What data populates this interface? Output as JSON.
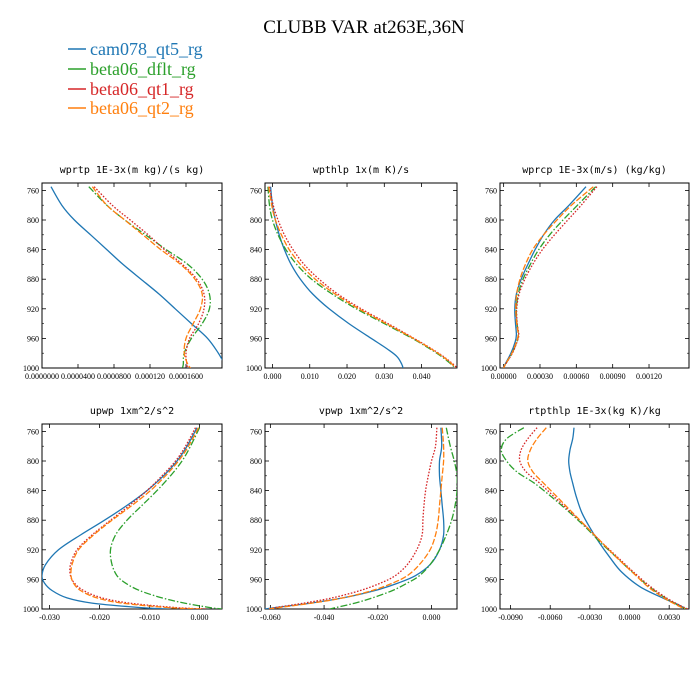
{
  "figure": {
    "title": "CLUBB VAR at263E,36N",
    "legend": [
      {
        "name": "cam078_qt5_rg",
        "color": "#1f77b4"
      },
      {
        "name": "beta06_dflt_rg",
        "color": "#2ca02c"
      },
      {
        "name": "beta06_qt1_rg",
        "color": "#d62728"
      },
      {
        "name": "beta06_qt2_rg",
        "color": "#ff7f0e"
      }
    ]
  },
  "chart_data": [
    {
      "type": "line",
      "title": "wprtp  1E-3x(m kg)/(s kg)",
      "xlim": [
        0.0,
        0.0002
      ],
      "ylim": [
        1000,
        750
      ],
      "xticks": [
        0.0,
        4e-05,
        8e-05,
        0.00012,
        0.00016
      ],
      "xtick_labels": [
        "0.0000000",
        "0.0000400",
        "0.0000800",
        "0.000120",
        "0.0001600"
      ],
      "yticks": [
        760,
        800,
        840,
        880,
        920,
        960,
        1000
      ],
      "ytick_labels": [
        "760",
        "800",
        "840",
        "880",
        "920",
        "960",
        "1000"
      ],
      "y": [
        755,
        780,
        800,
        820,
        840,
        860,
        880,
        900,
        920,
        940,
        960,
        980,
        995,
        1000
      ],
      "series": [
        {
          "name": "cam078_qt5_rg",
          "color": "#1f77b4",
          "dash": "solid",
          "values": [
            1e-05,
            2.2e-05,
            3.6e-05,
            5.4e-05,
            7.2e-05,
            9e-05,
            0.00011,
            0.00013,
            0.000148,
            0.000166,
            0.000184,
            0.000196,
            0.000203,
            0.000205
          ]
        },
        {
          "name": "beta06_dflt_rg",
          "color": "#2ca02c",
          "dash": "dashdot",
          "values": [
            5.2e-05,
            7.2e-05,
            9.2e-05,
            0.000115,
            0.000138,
            0.000162,
            0.000178,
            0.000186,
            0.000186,
            0.000178,
            0.000166,
            0.000158,
            0.000157,
            0.000156
          ]
        },
        {
          "name": "beta06_qt1_rg",
          "color": "#d62728",
          "dash": "dotted",
          "values": [
            5.8e-05,
            7.8e-05,
            9.8e-05,
            0.000118,
            0.000136,
            0.000156,
            0.000172,
            0.00018,
            0.00018,
            0.000174,
            0.000164,
            0.00016,
            0.000161,
            0.000162
          ]
        },
        {
          "name": "beta06_qt2_rg",
          "color": "#ff7f0e",
          "dash": "longdash",
          "values": [
            5.6e-05,
            7.2e-05,
            9.2e-05,
            0.000112,
            0.000132,
            0.000154,
            0.00017,
            0.000178,
            0.000176,
            0.000168,
            0.00016,
            0.000158,
            0.000162,
            0.000165
          ]
        }
      ]
    },
    {
      "type": "line",
      "title": "wpthlp  1x(m K)/s",
      "xlim": [
        -0.002,
        0.0495
      ],
      "ylim": [
        1000,
        750
      ],
      "xticks": [
        0.0,
        0.01,
        0.02,
        0.03,
        0.04
      ],
      "xtick_labels": [
        "0.000",
        "0.010",
        "0.020",
        "0.030",
        "0.040"
      ],
      "yticks": [
        760,
        800,
        840,
        880,
        920,
        960,
        1000
      ],
      "ytick_labels": [
        "760",
        "800",
        "840",
        "880",
        "920",
        "960",
        "1000"
      ],
      "y": [
        755,
        780,
        800,
        820,
        840,
        860,
        880,
        900,
        920,
        940,
        960,
        975,
        985,
        995,
        1000
      ],
      "series": [
        {
          "name": "cam078_qt5_rg",
          "color": "#1f77b4",
          "dash": "solid",
          "values": [
            -0.0005,
            0.0,
            0.0008,
            0.0018,
            0.0032,
            0.005,
            0.0075,
            0.0108,
            0.0152,
            0.0205,
            0.0265,
            0.031,
            0.0335,
            0.0347,
            0.035
          ]
        },
        {
          "name": "beta06_dflt_rg",
          "color": "#2ca02c",
          "dash": "dashdot",
          "values": [
            -0.0012,
            -0.0008,
            0.0,
            0.0015,
            0.0036,
            0.0065,
            0.0105,
            0.016,
            0.0225,
            0.03,
            0.0375,
            0.0425,
            0.0455,
            0.048,
            0.049
          ]
        },
        {
          "name": "beta06_qt1_rg",
          "color": "#d62728",
          "dash": "dotted",
          "values": [
            -0.0008,
            0.0002,
            0.0015,
            0.0032,
            0.0055,
            0.0085,
            0.0125,
            0.0175,
            0.0238,
            0.031,
            0.038,
            0.043,
            0.046,
            0.0485,
            0.0495
          ]
        },
        {
          "name": "beta06_qt2_rg",
          "color": "#ff7f0e",
          "dash": "longdash",
          "values": [
            -0.001,
            -0.0002,
            0.0008,
            0.0024,
            0.0045,
            0.0075,
            0.0115,
            0.0168,
            0.0232,
            0.0305,
            0.0378,
            0.0428,
            0.0458,
            0.0482,
            0.049
          ]
        }
      ]
    },
    {
      "type": "line",
      "title": "wprcp  1E-3x(m/s) (kg/kg)",
      "xlim": [
        -3e-05,
        0.00153
      ],
      "ylim": [
        1000,
        750
      ],
      "xticks": [
        0.0,
        0.0003,
        0.0006,
        0.0009,
        0.0012
      ],
      "xtick_labels": [
        "0.00000",
        "0.00030",
        "0.00060",
        "0.00090",
        "0.00120"
      ],
      "yticks": [
        760,
        800,
        840,
        880,
        920,
        960,
        1000
      ],
      "ytick_labels": [
        "760",
        "800",
        "840",
        "880",
        "920",
        "960",
        "1000"
      ],
      "y": [
        755,
        780,
        800,
        820,
        840,
        860,
        880,
        900,
        920,
        940,
        955,
        965,
        980,
        995,
        1000
      ],
      "series": [
        {
          "name": "cam078_qt5_rg",
          "color": "#1f77b4",
          "dash": "solid",
          "values": [
            0.00068,
            0.00054,
            0.00042,
            0.00033,
            0.00026,
            0.0002,
            0.000145,
            0.000105,
            9.2e-05,
            9.8e-05,
            0.000105,
            9.5e-05,
            6e-05,
            1.2e-05,
            0.0
          ]
        },
        {
          "name": "beta06_dflt_rg",
          "color": "#2ca02c",
          "dash": "dashdot",
          "values": [
            0.00076,
            0.00061,
            0.00049,
            0.00038,
            0.00029,
            0.00022,
            0.00016,
            0.00012,
            0.000105,
            0.00011,
            0.000122,
            0.000108,
            7e-05,
            1.5e-05,
            0.0
          ]
        },
        {
          "name": "beta06_qt1_rg",
          "color": "#d62728",
          "dash": "dotted",
          "values": [
            0.00077,
            0.00064,
            0.00053,
            0.00042,
            0.00032,
            0.00024,
            0.000175,
            0.000128,
            0.000108,
            0.000112,
            0.000125,
            0.00011,
            7.2e-05,
            1.5e-05,
            0.0
          ]
        },
        {
          "name": "beta06_qt2_rg",
          "color": "#ff7f0e",
          "dash": "longdash",
          "values": [
            0.00074,
            0.00056,
            0.00044,
            0.00033,
            0.00024,
            0.00018,
            0.000135,
            0.000108,
            0.0001,
            0.000108,
            0.00012,
            0.000105,
            6.8e-05,
            1.4e-05,
            0.0
          ]
        }
      ]
    },
    {
      "type": "line",
      "title": "upwp  1xm^2/s^2",
      "xlim": [
        -0.0315,
        0.0045
      ],
      "ylim": [
        1000,
        750
      ],
      "xticks": [
        -0.03,
        -0.02,
        -0.01,
        0.0
      ],
      "xtick_labels": [
        "-0.030",
        "-0.020",
        "-0.010",
        "0.000"
      ],
      "yticks": [
        760,
        800,
        840,
        880,
        920,
        960,
        1000
      ],
      "ytick_labels": [
        "760",
        "800",
        "840",
        "880",
        "920",
        "960",
        "1000"
      ],
      "y": [
        755,
        780,
        800,
        820,
        840,
        860,
        880,
        900,
        920,
        940,
        955,
        965,
        975,
        985,
        992,
        998,
        1000
      ],
      "series": [
        {
          "name": "cam078_qt5_rg",
          "color": "#1f77b4",
          "dash": "solid",
          "values": [
            -0.0005,
            -0.0025,
            -0.0045,
            -0.0072,
            -0.0105,
            -0.0145,
            -0.019,
            -0.0238,
            -0.0282,
            -0.0308,
            -0.0315,
            -0.031,
            -0.0295,
            -0.0265,
            -0.0215,
            -0.012,
            -0.006
          ]
        },
        {
          "name": "beta06_dflt_rg",
          "color": "#2ca02c",
          "dash": "dashdot",
          "values": [
            0.0,
            -0.0018,
            -0.0035,
            -0.0058,
            -0.0085,
            -0.0115,
            -0.0145,
            -0.0168,
            -0.0178,
            -0.0175,
            -0.0165,
            -0.0148,
            -0.012,
            -0.0075,
            -0.003,
            0.002,
            0.0045
          ]
        },
        {
          "name": "beta06_qt1_rg",
          "color": "#d62728",
          "dash": "dotted",
          "values": [
            -0.0008,
            -0.0028,
            -0.0048,
            -0.0075,
            -0.0105,
            -0.014,
            -0.0178,
            -0.0215,
            -0.0245,
            -0.0258,
            -0.0258,
            -0.025,
            -0.0232,
            -0.0195,
            -0.014,
            -0.005,
            0.0015
          ]
        },
        {
          "name": "beta06_qt2_rg",
          "color": "#ff7f0e",
          "dash": "longdash",
          "values": [
            -0.0002,
            -0.0022,
            -0.0042,
            -0.0068,
            -0.0098,
            -0.0135,
            -0.0175,
            -0.0212,
            -0.0242,
            -0.0255,
            -0.0257,
            -0.0252,
            -0.0238,
            -0.0205,
            -0.0155,
            -0.0065,
            0.0005
          ]
        }
      ]
    },
    {
      "type": "line",
      "title": "vpwp  1xm^2/s^2",
      "xlim": [
        -0.062,
        0.0095
      ],
      "ylim": [
        1000,
        750
      ],
      "xticks": [
        -0.06,
        -0.04,
        -0.02,
        0.0
      ],
      "xtick_labels": [
        "-0.060",
        "-0.040",
        "-0.020",
        "0.000"
      ],
      "yticks": [
        760,
        800,
        840,
        880,
        920,
        960,
        1000
      ],
      "ytick_labels": [
        "760",
        "800",
        "840",
        "880",
        "920",
        "960",
        "1000"
      ],
      "y": [
        755,
        780,
        800,
        820,
        840,
        860,
        880,
        900,
        920,
        940,
        955,
        965,
        975,
        985,
        992,
        998,
        1000
      ],
      "series": [
        {
          "name": "cam078_qt5_rg",
          "color": "#1f77b4",
          "dash": "solid",
          "values": [
            0.0035,
            0.0038,
            0.003,
            0.003,
            0.0035,
            0.004,
            0.0045,
            0.0045,
            0.003,
            -0.0005,
            -0.006,
            -0.0125,
            -0.021,
            -0.033,
            -0.045,
            -0.058,
            -0.062
          ]
        },
        {
          "name": "beta06_dflt_rg",
          "color": "#2ca02c",
          "dash": "dashdot",
          "values": [
            0.0055,
            0.007,
            0.0085,
            0.0095,
            0.0095,
            0.0088,
            0.0075,
            0.0055,
            0.003,
            -0.0005,
            -0.0045,
            -0.009,
            -0.0145,
            -0.022,
            -0.0285,
            -0.0355,
            -0.038
          ]
        },
        {
          "name": "beta06_qt1_rg",
          "color": "#d62728",
          "dash": "dotted",
          "values": [
            0.002,
            0.0015,
            0.0,
            -0.0012,
            -0.0022,
            -0.0028,
            -0.0032,
            -0.0035,
            -0.0055,
            -0.009,
            -0.0135,
            -0.019,
            -0.0265,
            -0.037,
            -0.0475,
            -0.058,
            -0.061
          ]
        },
        {
          "name": "beta06_qt2_rg",
          "color": "#ff7f0e",
          "dash": "longdash",
          "values": [
            0.004,
            0.0045,
            0.0045,
            0.004,
            0.0035,
            0.003,
            0.0025,
            0.0015,
            -0.0005,
            -0.0045,
            -0.009,
            -0.0145,
            -0.022,
            -0.033,
            -0.0445,
            -0.0565,
            -0.0605
          ]
        }
      ]
    },
    {
      "type": "line",
      "title": "rtpthlp  1E-3x(kg K)/kg",
      "xlim": [
        -0.0098,
        0.0045
      ],
      "ylim": [
        1000,
        750
      ],
      "xticks": [
        -0.009,
        -0.006,
        -0.003,
        0.0,
        0.003
      ],
      "xtick_labels": [
        "-0.0090",
        "-0.0060",
        "-0.0030",
        "0.0000",
        "0.0030"
      ],
      "yticks": [
        760,
        800,
        840,
        880,
        920,
        960,
        1000
      ],
      "ytick_labels": [
        "760",
        "800",
        "840",
        "880",
        "920",
        "960",
        "1000"
      ],
      "y": [
        755,
        770,
        785,
        800,
        815,
        830,
        850,
        870,
        890,
        910,
        930,
        950,
        970,
        985,
        995,
        1000
      ],
      "series": [
        {
          "name": "cam078_qt5_rg",
          "color": "#1f77b4",
          "dash": "solid",
          "values": [
            -0.0042,
            -0.0043,
            -0.0045,
            -0.0046,
            -0.0045,
            -0.0043,
            -0.004,
            -0.0036,
            -0.003,
            -0.0023,
            -0.0015,
            -0.0006,
            0.0008,
            0.0025,
            0.0038,
            0.0042
          ]
        },
        {
          "name": "beta06_dflt_rg",
          "color": "#2ca02c",
          "dash": "dashdot",
          "values": [
            -0.008,
            -0.0093,
            -0.0097,
            -0.0093,
            -0.0085,
            -0.0072,
            -0.0058,
            -0.0045,
            -0.0033,
            -0.0022,
            -0.001,
            0.0002,
            0.0015,
            0.0027,
            0.0037,
            0.0043
          ]
        },
        {
          "name": "beta06_qt1_rg",
          "color": "#d62728",
          "dash": "dotted",
          "values": [
            -0.007,
            -0.0077,
            -0.0082,
            -0.0083,
            -0.0078,
            -0.0068,
            -0.0056,
            -0.0044,
            -0.0032,
            -0.0021,
            -0.0009,
            0.0003,
            0.0016,
            0.0028,
            0.0038,
            0.0044
          ]
        },
        {
          "name": "beta06_qt2_rg",
          "color": "#ff7f0e",
          "dash": "longdash",
          "values": [
            -0.0063,
            -0.007,
            -0.0075,
            -0.0077,
            -0.0073,
            -0.0065,
            -0.0054,
            -0.0043,
            -0.0032,
            -0.0021,
            -0.001,
            0.0002,
            0.0014,
            0.0026,
            0.0036,
            0.0042
          ]
        }
      ]
    }
  ]
}
